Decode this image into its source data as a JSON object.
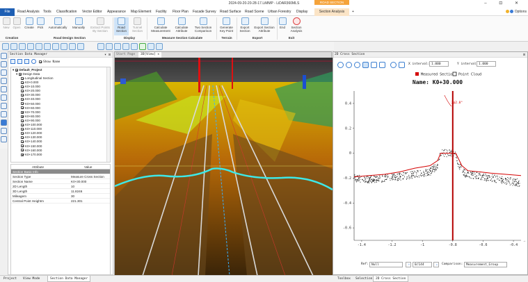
{
  "window": {
    "title": "2024-09-20-20-28-17.LiMMP - LiDAR360MLS",
    "context_title": "ROAD SECTION ANALY...",
    "controls": "–  ⊡  ✕"
  },
  "menu": {
    "file": "File",
    "items": [
      "Road Analysis",
      "Tools",
      "Classification",
      "Vector Editor",
      "Appearance",
      "Map Element",
      "Facility",
      "Floor Plan",
      "Facade Survey",
      "Road Surface",
      "Road Scene",
      "Urban Forestry",
      "Display"
    ],
    "context_tab": "Section Analysis",
    "plus": "+",
    "account": "Options"
  },
  "ribbon": {
    "buttons": [
      {
        "label": "New",
        "dim": true
      },
      {
        "label": "Open",
        "dim": true
      },
      {
        "label": "Create",
        "dim": false
      },
      {
        "label": "Pick",
        "dim": false
      },
      {
        "label": "Automatically",
        "dim": false
      },
      {
        "label": "Manually",
        "dim": false
      },
      {
        "label": "Extract Points By Section",
        "dim": true
      },
      {
        "label": "Road Section",
        "sel": true
      },
      {
        "label": "Tunnel Section",
        "dim": true
      },
      {
        "label": "Calculate Measurement",
        "dim": false
      },
      {
        "label": "Calculate Attribute",
        "dim": false
      },
      {
        "label": "Two Section Comparison",
        "dim": false
      },
      {
        "label": "Generate Key Point",
        "dim": false
      },
      {
        "label": "Export Section",
        "dim": false
      },
      {
        "label": "Export Section Attribute",
        "dim": false
      },
      {
        "label": "End",
        "dim": false
      },
      {
        "label": "Section Analysis",
        "dim": false
      }
    ],
    "groups": [
      "Creation",
      "Road Design Section",
      "Display",
      "Measure Section Calculate",
      "Terrain",
      "Export",
      "Exit"
    ]
  },
  "section_manager": {
    "title": "Section Data Manager",
    "show_name": "Show Name",
    "project": "Default_Project",
    "design": "Design Data",
    "long": "Longitudinal Section",
    "stations": [
      "K0+0.000",
      "K0+10.000",
      "K0+20.000",
      "K0+30.000",
      "K0+40.000",
      "K0+50.000",
      "K0+60.000",
      "K0+70.000",
      "K0+80.000",
      "K0+90.000",
      "K0+100.000",
      "K0+110.000",
      "K0+120.000",
      "K0+130.000",
      "K0+140.000",
      "K0+150.000",
      "K0+160.000",
      "K0+170.000"
    ]
  },
  "properties": {
    "head_attr": "Attribute",
    "head_value": "Value",
    "category": "Section Basic Info",
    "rows": [
      {
        "k": "Section Type",
        "v": "Measure Cross Section"
      },
      {
        "k": "Section Name",
        "v": "K0+30.000"
      },
      {
        "k": "2D Length",
        "v": "10"
      },
      {
        "k": "3D Length",
        "v": "11.8246"
      },
      {
        "k": "Mileagem",
        "v": "30"
      },
      {
        "k": "Central Point Heightm",
        "v": "221.301"
      }
    ]
  },
  "viewer": {
    "tab_start": "Start Page",
    "tab_view": "3D[View] ✕"
  },
  "cross_section": {
    "title": "2D Cross Section",
    "x_interval_label": "X interval:",
    "x_interval": "1.000",
    "y_interval_label": "Y interval:",
    "y_interval": "1.000",
    "legend_measured": "Measured Section",
    "legend_points": "Point Cloud",
    "name": "Name: K0+30.000",
    "annotation": "2@2.8°",
    "ref_label": "Ref:",
    "ref_value": "Null",
    "page": "0/144",
    "comparison_label": "Comparison:",
    "comparison_value": "Measurement_Group",
    "colors": {
      "measured": "#d40000",
      "points": "#111111",
      "center": "#b40000"
    }
  },
  "chart_data": {
    "type": "line",
    "title": "Name: K0+30.000",
    "x_ticks": [
      "-1.4",
      "-1.2",
      "-1",
      "-0.8",
      "-0.6",
      "-0.4"
    ],
    "y_ticks": [
      "0.4",
      "0.2",
      "0",
      "-0.2",
      "-0.4",
      "-0.6"
    ],
    "xlim": [
      -1.45,
      -0.35
    ],
    "ylim": [
      -0.7,
      0.5
    ],
    "series": [
      {
        "name": "Measured Section",
        "x": [
          -1.45,
          -1.35,
          -1.25,
          -1.15,
          -1.05,
          -0.95,
          -0.9,
          -0.88,
          -0.86,
          -0.84,
          -0.82,
          -0.8,
          -0.78,
          -0.76,
          -0.74,
          -0.7,
          -0.62,
          -0.55,
          -0.45,
          -0.35
        ],
        "y": [
          -0.19,
          -0.18,
          -0.17,
          -0.15,
          -0.12,
          -0.1,
          -0.06,
          0.0,
          0.0,
          0.0,
          0.0,
          0.0,
          0.0,
          -0.05,
          -0.1,
          -0.14,
          -0.15,
          -0.16,
          -0.17,
          -0.18
        ]
      },
      {
        "name": "Point Cloud",
        "x": [
          -1.45,
          -1.35,
          -1.25,
          -1.15,
          -1.05,
          -0.95,
          -0.9,
          -0.88,
          -0.84,
          -0.8,
          -0.78,
          -0.76,
          -0.72,
          -0.65,
          -0.55,
          -0.45,
          -0.35
        ],
        "y": [
          -0.2,
          -0.21,
          -0.2,
          -0.19,
          -0.17,
          -0.15,
          -0.1,
          0.0,
          0.0,
          0.0,
          0.0,
          -0.1,
          -0.16,
          -0.18,
          -0.2,
          -0.22,
          -0.24
        ]
      }
    ]
  },
  "statusbar": {
    "left_tabs": [
      "Project",
      "View Mode",
      "Section Data Manager"
    ],
    "right_tabs": [
      "Toolbox",
      "Selection",
      "2D Cross Section"
    ]
  }
}
